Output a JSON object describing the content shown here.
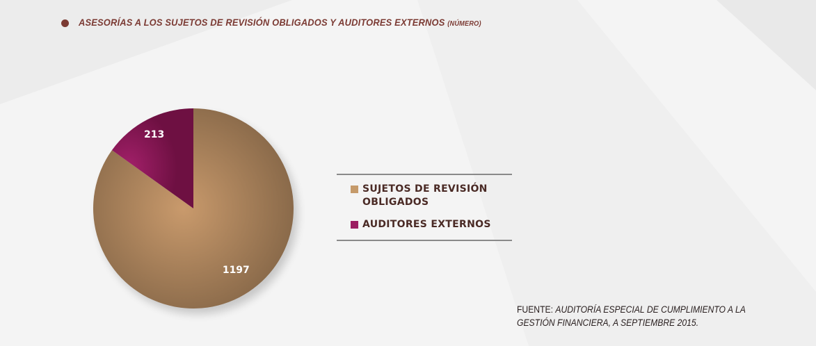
{
  "title": {
    "main": "ASESORÍAS A LOS SUJETOS DE REVISIÓN OBLIGADOS Y AUDITORES EXTERNOS",
    "unit": "(NÚMERO)"
  },
  "chart_data": {
    "type": "pie",
    "title": "ASESORÍAS A LOS SUJETOS DE REVISIÓN OBLIGADOS Y AUDITORES EXTERNOS (NÚMERO)",
    "slices": [
      {
        "label": "SUJETOS DE REVISIÓN OBLIGADOS",
        "value": 1197,
        "color": "#a07a58"
      },
      {
        "label": "AUDITORES EXTERNOS",
        "value": 213,
        "color": "#8a1d55"
      }
    ],
    "data_labels": [
      "1197",
      "213"
    ],
    "legend_position": "right"
  },
  "legend": {
    "items": [
      {
        "label": "SUJETOS DE REVISIÓN OBLIGADOS",
        "color": "#c59a6a"
      },
      {
        "label": "AUDITORES EXTERNOS",
        "color": "#9b1f62"
      }
    ]
  },
  "source": {
    "prefix": "FUENTE:",
    "text": "AUDITORÍA ESPECIAL DE CUMPLIMIENTO A LA GESTIÓN FINANCIERA, A SEPTIEMBRE 2015."
  }
}
